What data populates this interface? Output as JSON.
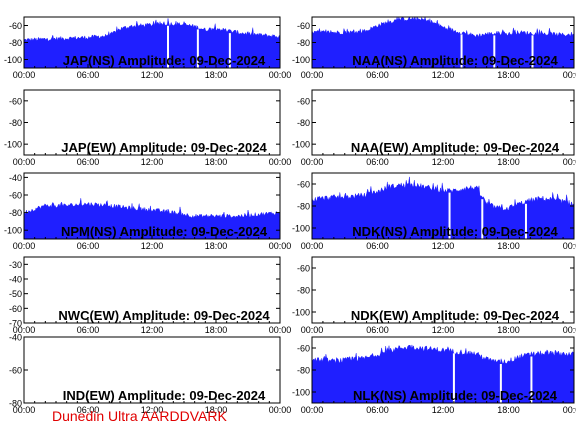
{
  "footer": "Dunedin Ultra AARDDVARK",
  "colors": {
    "signal": "#1f1fff",
    "axis": "#000000",
    "footer": "#e00000",
    "background": "#ffffff"
  },
  "x_ticks": [
    "00:00",
    "06:00",
    "12:00",
    "18:00",
    "00:00"
  ],
  "chart_data": [
    {
      "id": "jap-ns",
      "type": "area",
      "title": "JAP(NS) Amplitude: 09-Dec-2024",
      "ylim": [
        -110,
        -50
      ],
      "yticks": [
        "-100",
        "-80",
        "-60"
      ],
      "grid": false,
      "x": [
        0,
        2,
        4,
        6,
        8,
        9,
        10,
        11,
        12,
        13,
        14,
        15,
        16,
        17,
        18,
        19,
        20,
        21,
        22,
        23,
        24
      ],
      "y": [
        -77,
        -76,
        -75,
        -74,
        -72,
        -64,
        -61,
        -60,
        -59,
        -58,
        -58,
        -59,
        -61,
        -65,
        -63,
        -66,
        -68,
        -70,
        -71,
        -72,
        -73
      ],
      "dropouts": [
        13.5,
        16.3,
        19.3
      ]
    },
    {
      "id": "naa-ns",
      "type": "area",
      "title": "NAA(NS) Amplitude: 09-Dec-2024",
      "ylim": [
        -110,
        -50
      ],
      "yticks": [
        "-100",
        "-80",
        "-60"
      ],
      "grid": false,
      "x": [
        0,
        1,
        2,
        3,
        4,
        5,
        6,
        7,
        8,
        9,
        10,
        11,
        12,
        13,
        14,
        15,
        16,
        17,
        18,
        19,
        20,
        21,
        22,
        23,
        24
      ],
      "y": [
        -68,
        -68,
        -68,
        -68,
        -68,
        -66,
        -60,
        -56,
        -53,
        -52,
        -53,
        -56,
        -62,
        -66,
        -69,
        -72,
        -70,
        -69,
        -70,
        -68,
        -69,
        -70,
        -70,
        -71,
        -70
      ],
      "dropouts": [
        13.7,
        16.7,
        20.2
      ]
    },
    {
      "id": "jap-ew",
      "type": "area",
      "title": "JAP(EW) Amplitude: 09-Dec-2024",
      "ylim": [
        -110,
        -50
      ],
      "yticks": [
        "-100",
        "-80",
        "-60"
      ],
      "grid": false,
      "x": [],
      "y": [],
      "dropouts": []
    },
    {
      "id": "naa-ew",
      "type": "area",
      "title": "NAA(EW) Amplitude: 09-Dec-2024",
      "ylim": [
        -110,
        -50
      ],
      "yticks": [
        "-100",
        "-80",
        "-60"
      ],
      "grid": false,
      "x": [],
      "y": [],
      "dropouts": []
    },
    {
      "id": "npm-ns",
      "type": "area",
      "title": "NPM(NS) Amplitude: 09-Dec-2024",
      "ylim": [
        -110,
        -35
      ],
      "yticks": [
        "-100",
        "-80",
        "-60",
        "-40"
      ],
      "grid": false,
      "x": [
        0,
        2,
        4,
        6,
        8,
        10,
        12,
        14,
        16,
        18,
        20,
        22,
        24
      ],
      "y": [
        -80,
        -72,
        -72,
        -70,
        -72,
        -75,
        -77,
        -80,
        -84,
        -84,
        -84,
        -82,
        -80
      ],
      "dropouts": []
    },
    {
      "id": "ndk-ns",
      "type": "area",
      "title": "NDK(NS) Amplitude: 09-Dec-2024",
      "ylim": [
        -110,
        -50
      ],
      "yticks": [
        "-100",
        "-80",
        "-60"
      ],
      "grid": false,
      "x": [
        0,
        1,
        2,
        3,
        4,
        5,
        6,
        7,
        8,
        9,
        10,
        11,
        12,
        13,
        14,
        15,
        16,
        17,
        18,
        19,
        20,
        21,
        22,
        23,
        24
      ],
      "y": [
        -74,
        -73,
        -72,
        -72,
        -71,
        -70,
        -67,
        -63,
        -61,
        -61,
        -62,
        -64,
        -66,
        -66,
        -64,
        -63,
        -78,
        -82,
        -82,
        -78,
        -75,
        -73,
        -74,
        -76,
        -78
      ],
      "dropouts": [
        12.6,
        15.6,
        19.6
      ]
    },
    {
      "id": "nwc-ew",
      "type": "area",
      "title": "NWC(EW) Amplitude: 09-Dec-2024",
      "ylim": [
        -70,
        -25
      ],
      "yticks": [
        "-70",
        "-60",
        "-50",
        "-40",
        "-30"
      ],
      "grid": false,
      "x": [],
      "y": [],
      "dropouts": []
    },
    {
      "id": "ndk-ew",
      "type": "area",
      "title": "NDK(EW) Amplitude: 09-Dec-2024",
      "ylim": [
        -110,
        -50
      ],
      "yticks": [
        "-100",
        "-80",
        "-60"
      ],
      "grid": false,
      "x": [],
      "y": [],
      "dropouts": []
    },
    {
      "id": "ind-ew",
      "type": "area",
      "title": "IND(EW) Amplitude: 09-Dec-2024",
      "ylim": [
        -80,
        -40
      ],
      "yticks": [
        "-80",
        "-60",
        "-40"
      ],
      "grid": false,
      "x": [],
      "y": [],
      "dropouts": []
    },
    {
      "id": "nlk-ns",
      "type": "area",
      "title": "NLK(NS) Amplitude: 09-Dec-2024",
      "ylim": [
        -110,
        -50
      ],
      "yticks": [
        "-100",
        "-80",
        "-60"
      ],
      "grid": false,
      "x": [
        0,
        1,
        2,
        3,
        4,
        5,
        6,
        7,
        8,
        9,
        10,
        11,
        12,
        13,
        14,
        15,
        16,
        17,
        18,
        19,
        20,
        21,
        22,
        23,
        24
      ],
      "y": [
        -71,
        -71,
        -72,
        -71,
        -70,
        -69,
        -66,
        -63,
        -60,
        -59,
        -60,
        -61,
        -62,
        -63,
        -64,
        -65,
        -70,
        -73,
        -72,
        -68,
        -66,
        -65,
        -65,
        -65,
        -66
      ],
      "dropouts": [
        13.0,
        17.3,
        20.1
      ]
    }
  ]
}
